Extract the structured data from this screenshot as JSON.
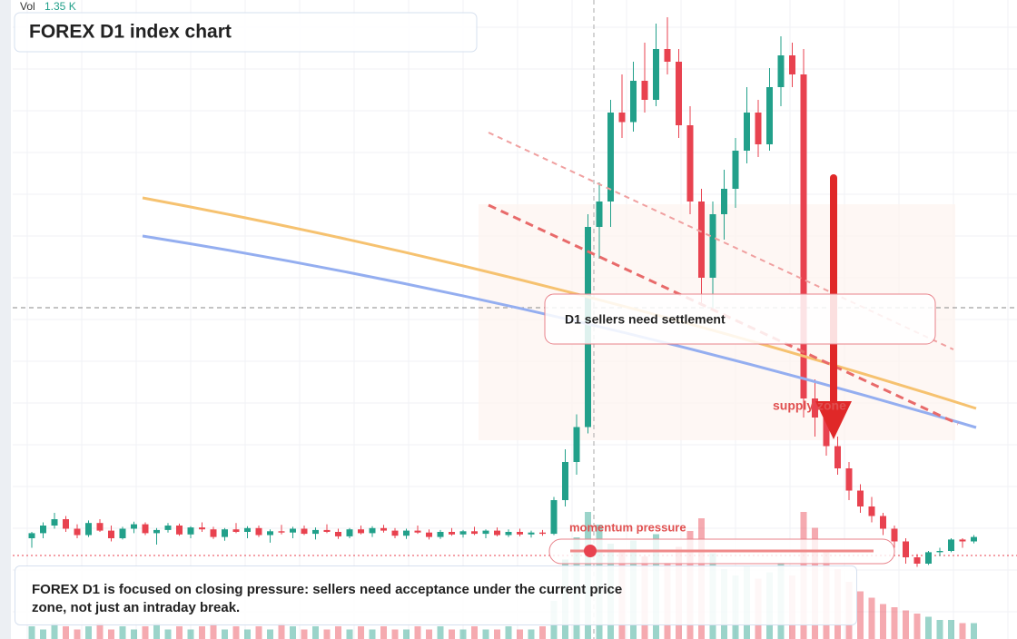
{
  "chart_data": {
    "type": "candlestick",
    "title": "FOREX D1 index chart",
    "volume_label": "Vol",
    "volume_value": "1.35 K",
    "zone_label": "D1 sellers need settlement",
    "supply_label": "supply zone",
    "momentum_label": "momentum pressure",
    "note": "FOREX D1 is focused on closing pressure: sellers need acceptance under the current price zone, not just an intraday break.",
    "up_color": "#22a08a",
    "down_color": "#e8424f",
    "ylim": [
      0,
      100
    ],
    "ohlc": [
      [
        11.0,
        12.0,
        9.5,
        11.8
      ],
      [
        11.8,
        13.5,
        11.0,
        13.0
      ],
      [
        13.0,
        15.0,
        12.5,
        14.0
      ],
      [
        14.0,
        14.5,
        12.0,
        12.5
      ],
      [
        12.5,
        13.2,
        11.0,
        11.5
      ],
      [
        11.5,
        13.8,
        11.2,
        13.4
      ],
      [
        13.4,
        14.0,
        12.0,
        12.2
      ],
      [
        12.2,
        13.0,
        10.5,
        11.0
      ],
      [
        11.0,
        12.8,
        10.8,
        12.5
      ],
      [
        12.5,
        13.6,
        11.8,
        13.2
      ],
      [
        13.2,
        13.5,
        11.5,
        11.8
      ],
      [
        11.8,
        12.6,
        10.0,
        12.3
      ],
      [
        12.3,
        13.4,
        11.9,
        13.0
      ],
      [
        13.0,
        13.3,
        11.4,
        11.6
      ],
      [
        11.6,
        12.9,
        11.0,
        12.7
      ],
      [
        12.7,
        13.5,
        12.0,
        12.4
      ],
      [
        12.4,
        12.8,
        10.9,
        11.2
      ],
      [
        11.2,
        12.6,
        10.6,
        12.4
      ],
      [
        12.4,
        13.4,
        11.8,
        12.0
      ],
      [
        12.0,
        12.9,
        11.0,
        12.6
      ],
      [
        12.6,
        13.0,
        11.2,
        11.5
      ],
      [
        11.5,
        12.4,
        10.3,
        12.1
      ],
      [
        12.1,
        13.1,
        11.6,
        11.9
      ],
      [
        11.9,
        12.8,
        11.0,
        12.5
      ],
      [
        12.5,
        13.0,
        11.5,
        11.7
      ],
      [
        11.7,
        12.7,
        10.8,
        12.3
      ],
      [
        12.3,
        13.2,
        11.8,
        12.0
      ],
      [
        12.0,
        12.5,
        10.9,
        11.3
      ],
      [
        11.3,
        12.6,
        11.0,
        12.4
      ],
      [
        12.4,
        13.0,
        11.6,
        11.8
      ],
      [
        11.8,
        12.9,
        11.2,
        12.6
      ],
      [
        12.6,
        13.1,
        11.9,
        12.2
      ],
      [
        12.2,
        12.6,
        11.0,
        11.4
      ],
      [
        11.4,
        12.5,
        10.9,
        12.2
      ],
      [
        12.2,
        13.0,
        11.7,
        11.9
      ],
      [
        11.9,
        12.4,
        10.8,
        11.2
      ],
      [
        11.2,
        12.3,
        10.9,
        12.0
      ],
      [
        12.0,
        12.6,
        11.4,
        11.6
      ],
      [
        11.6,
        12.3,
        11.1,
        12.1
      ],
      [
        12.1,
        12.8,
        11.5,
        11.7
      ],
      [
        11.7,
        12.4,
        11.0,
        12.2
      ],
      [
        12.2,
        12.7,
        11.3,
        11.5
      ],
      [
        11.5,
        12.4,
        11.2,
        12.0
      ],
      [
        12.0,
        12.5,
        11.3,
        11.6
      ],
      [
        11.6,
        12.2,
        11.1,
        11.9
      ],
      [
        11.9,
        12.3,
        11.4,
        11.7
      ],
      [
        11.7,
        17.5,
        11.5,
        17.0
      ],
      [
        17.0,
        25.0,
        16.0,
        23.0
      ],
      [
        23.0,
        30.5,
        21.0,
        28.5
      ],
      [
        28.5,
        62.0,
        27.5,
        60.0
      ],
      [
        60.0,
        67.0,
        55.0,
        64.0
      ],
      [
        64.0,
        80.0,
        60.0,
        78.0
      ],
      [
        78.0,
        84.0,
        74.0,
        76.5
      ],
      [
        76.5,
        86.0,
        75.0,
        83.0
      ],
      [
        83.0,
        89.0,
        78.0,
        80.0
      ],
      [
        80.0,
        92.0,
        79.0,
        88.0
      ],
      [
        88.0,
        93.0,
        84.0,
        86.0
      ],
      [
        86.0,
        88.0,
        74.0,
        76.0
      ],
      [
        76.0,
        79.0,
        62.0,
        64.0
      ],
      [
        64.0,
        66.0,
        48.0,
        52.0
      ],
      [
        52.0,
        64.0,
        47.0,
        62.0
      ],
      [
        62.0,
        69.0,
        58.0,
        66.0
      ],
      [
        66.0,
        74.0,
        63.0,
        72.0
      ],
      [
        72.0,
        82.0,
        70.0,
        78.0
      ],
      [
        78.0,
        80.0,
        71.0,
        73.0
      ],
      [
        73.0,
        85.0,
        72.0,
        82.0
      ],
      [
        82.0,
        90.0,
        79.0,
        87.0
      ],
      [
        87.0,
        89.0,
        82.0,
        84.0
      ],
      [
        84.0,
        88.0,
        30.0,
        33.0
      ],
      [
        33.0,
        36.0,
        27.0,
        30.0
      ],
      [
        30.0,
        31.0,
        24.0,
        25.5
      ],
      [
        25.5,
        27.0,
        21.0,
        22.0
      ],
      [
        22.0,
        23.0,
        17.0,
        18.5
      ],
      [
        18.5,
        19.5,
        15.0,
        16.0
      ],
      [
        16.0,
        17.5,
        13.5,
        14.5
      ],
      [
        14.5,
        15.0,
        11.5,
        12.5
      ],
      [
        12.5,
        13.0,
        9.5,
        10.5
      ],
      [
        10.5,
        11.0,
        7.0,
        8.0
      ],
      [
        8.0,
        8.5,
        6.5,
        7.0
      ],
      [
        7.0,
        9.0,
        6.8,
        8.8
      ],
      [
        8.8,
        9.5,
        8.2,
        9.0
      ],
      [
        9.0,
        11.0,
        8.8,
        10.8
      ],
      [
        10.8,
        11.0,
        9.5,
        10.5
      ],
      [
        10.5,
        11.5,
        10.2,
        11.2
      ]
    ],
    "volume": [
      0.4,
      0.3,
      0.5,
      0.4,
      0.3,
      0.4,
      0.5,
      0.3,
      0.4,
      0.3,
      0.4,
      0.5,
      0.3,
      0.4,
      0.3,
      0.4,
      0.5,
      0.3,
      0.4,
      0.3,
      0.4,
      0.3,
      0.5,
      0.4,
      0.3,
      0.4,
      0.3,
      0.4,
      0.3,
      0.4,
      0.3,
      0.4,
      0.3,
      0.3,
      0.4,
      0.3,
      0.4,
      0.3,
      0.3,
      0.4,
      0.3,
      0.3,
      0.4,
      0.3,
      0.3,
      0.4,
      1.2,
      2.5,
      3.2,
      4.0,
      3.6,
      3.0,
      2.8,
      3.1,
      2.6,
      3.3,
      2.4,
      2.9,
      3.4,
      3.8,
      2.7,
      2.2,
      2.0,
      2.3,
      1.9,
      2.1,
      2.4,
      2.0,
      4.0,
      3.5,
      2.8,
      2.2,
      1.8,
      1.5,
      1.3,
      1.1,
      1.0,
      0.9,
      0.8,
      0.7,
      0.6,
      0.6,
      0.5,
      0.5
    ]
  }
}
